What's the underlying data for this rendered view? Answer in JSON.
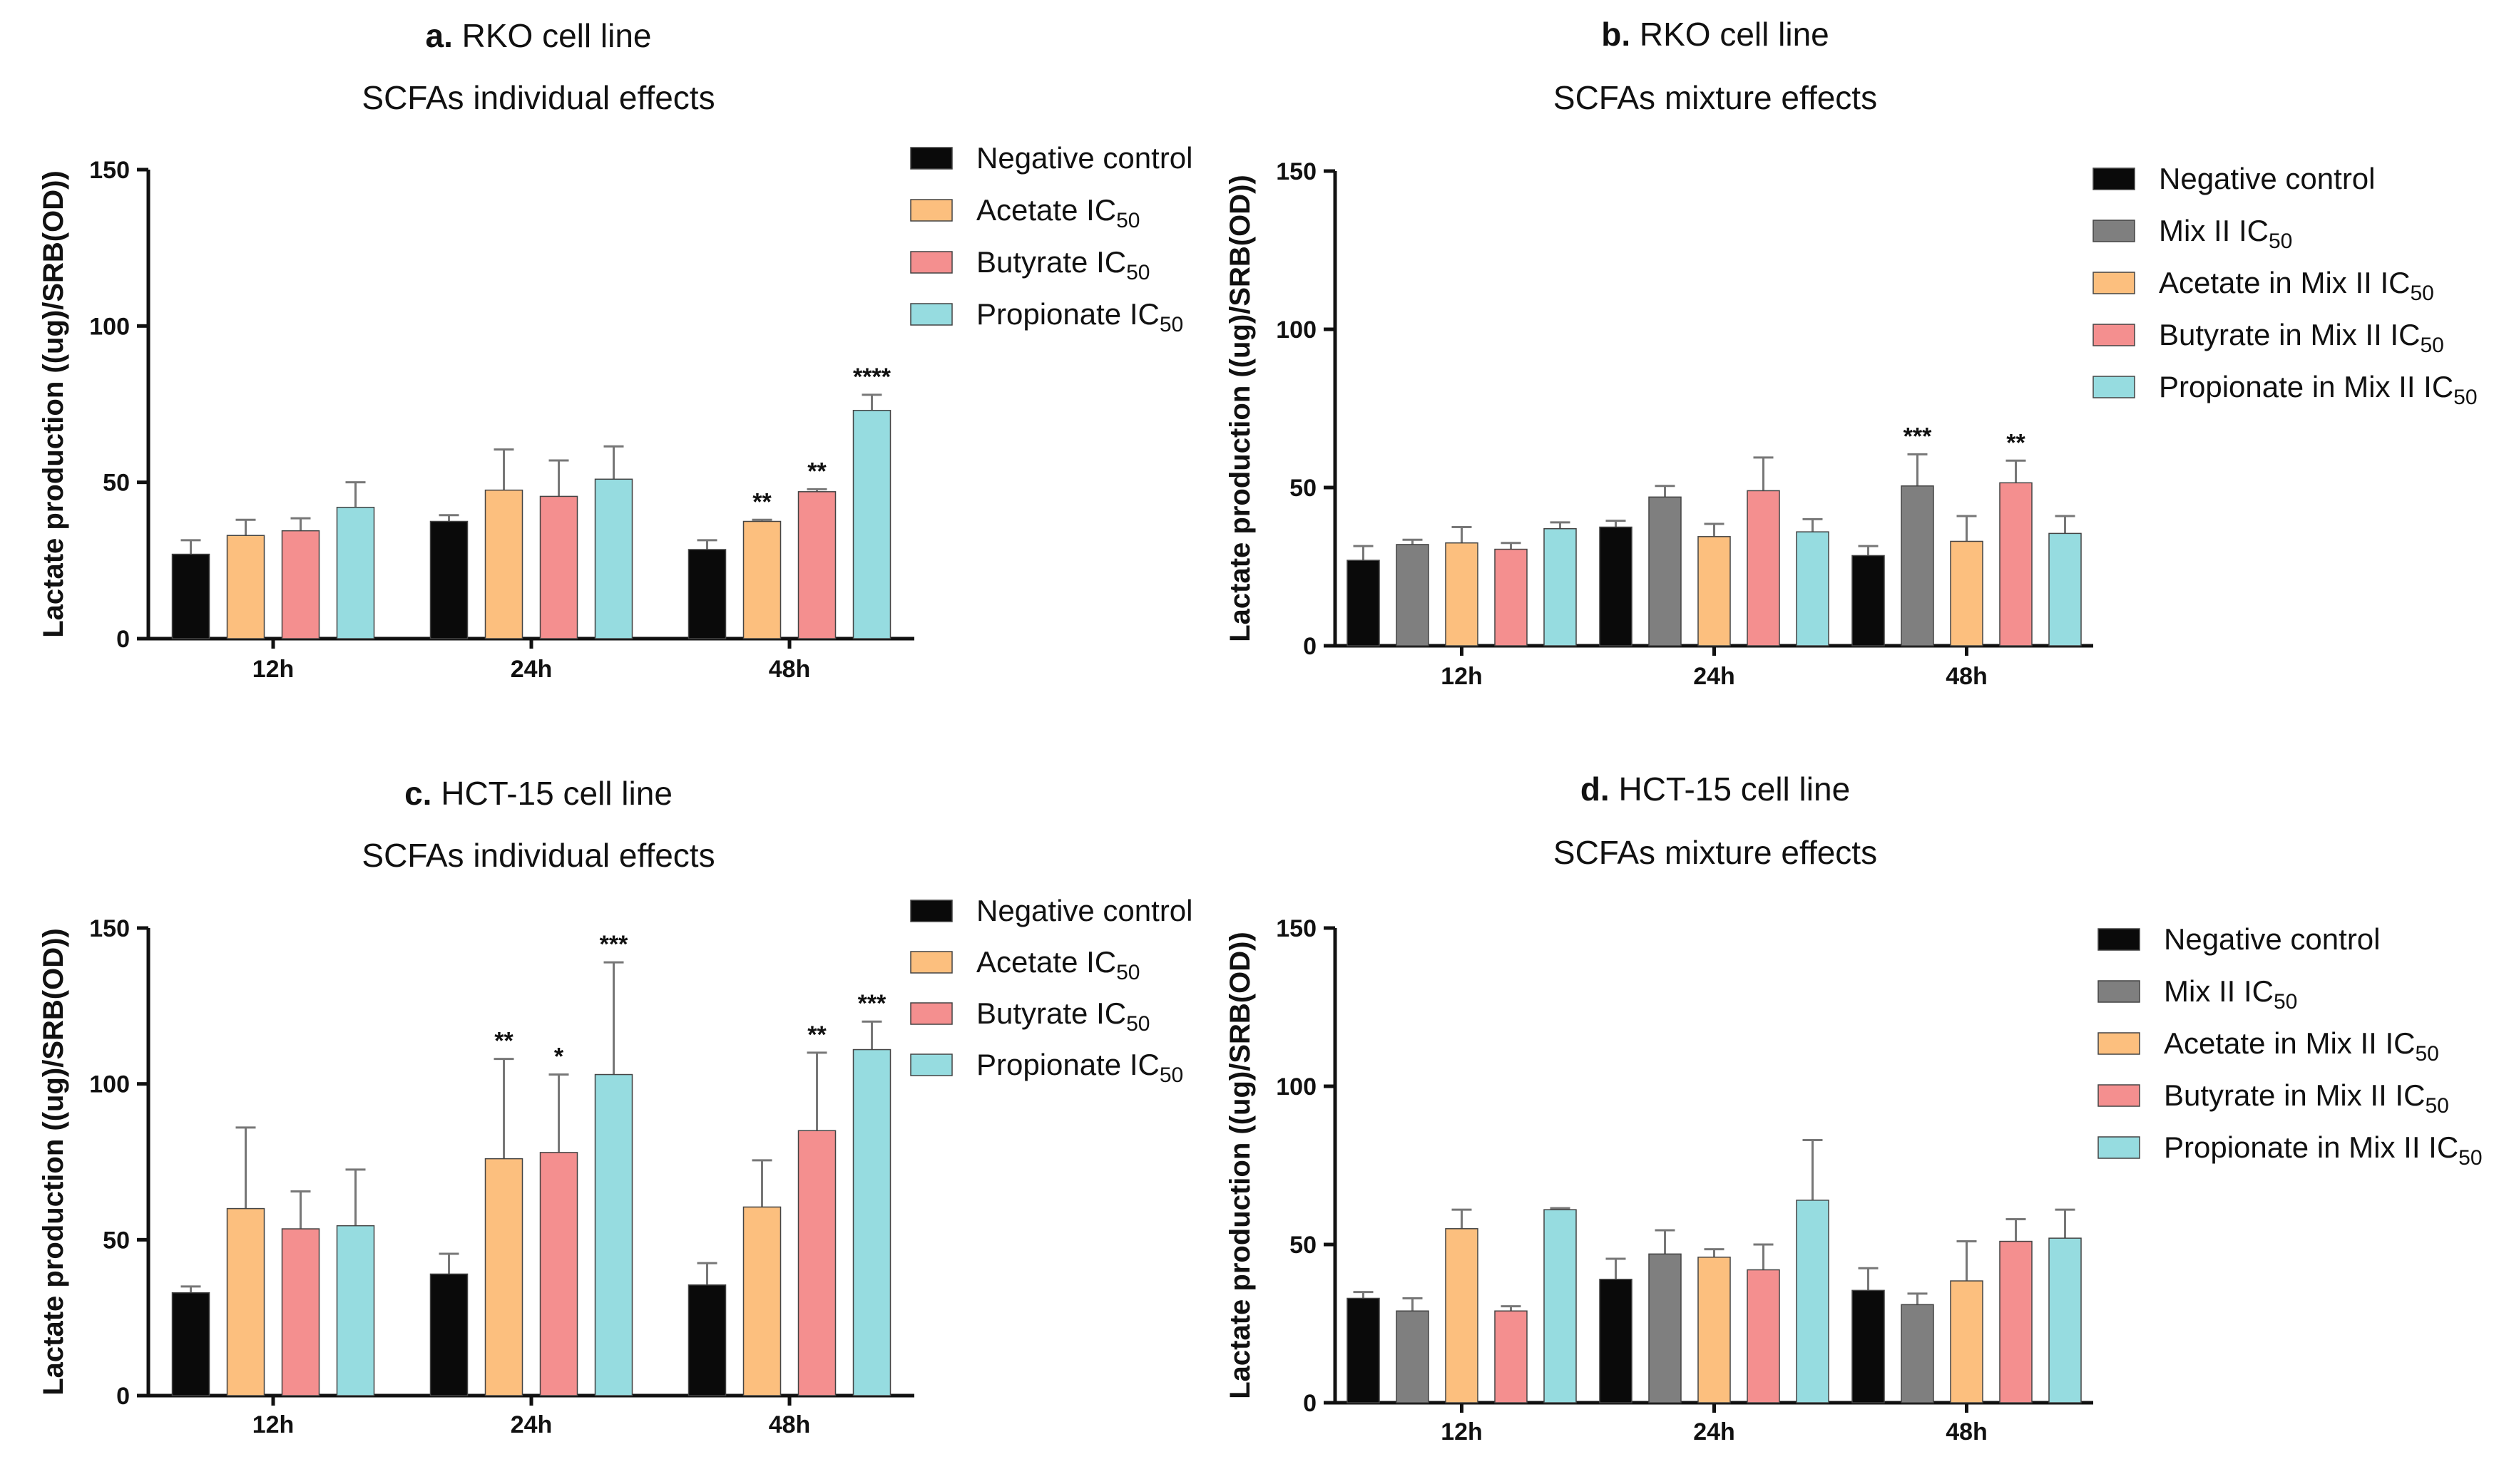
{
  "colors": {
    "negative": "#0a0a0a",
    "mix": "#7f7f7f",
    "acetate": "#fcbf7e",
    "butyrate": "#f48f8f",
    "propionate": "#96dce0",
    "axis": "#111111",
    "errorbar": "#777777"
  },
  "chart_data": [
    {
      "type": "bar",
      "panel_letter": "a.",
      "title": "RKO cell line",
      "subtitle": "SCFAs individual effects",
      "ylabel": "Lactate production ((ug)/SRB(OD))",
      "xlabel": "",
      "ylim": [
        0,
        150
      ],
      "yticks": [
        0,
        50,
        100,
        150
      ],
      "categories": [
        "12h",
        "24h",
        "48h"
      ],
      "legend_position": "top-right",
      "series": [
        {
          "name": "Negative control",
          "color_key": "negative",
          "values": [
            27,
            37.5,
            28.5
          ],
          "errors": [
            4.5,
            2,
            3
          ],
          "sig": [
            "",
            "",
            ""
          ]
        },
        {
          "name": "Acetate IC",
          "sub": "50",
          "color_key": "acetate",
          "values": [
            33,
            47.5,
            37.5
          ],
          "errors": [
            5,
            13,
            0.5
          ],
          "sig": [
            "",
            "",
            "**"
          ]
        },
        {
          "name": "Butyrate IC",
          "sub": "50",
          "color_key": "butyrate",
          "values": [
            34.5,
            45.5,
            47
          ],
          "errors": [
            4,
            11.5,
            0.8
          ],
          "sig": [
            "",
            "",
            "**"
          ]
        },
        {
          "name": "Propionate IC",
          "sub": "50",
          "color_key": "propionate",
          "values": [
            42,
            51,
            73
          ],
          "errors": [
            8,
            10.5,
            5
          ],
          "sig": [
            "",
            "",
            "****"
          ]
        }
      ]
    },
    {
      "type": "bar",
      "panel_letter": "b.",
      "title": "RKO cell line",
      "subtitle": "SCFAs mixture effects",
      "ylabel": "Lactate production ((ug)/SRB(OD))",
      "xlabel": "",
      "ylim": [
        0,
        150
      ],
      "yticks": [
        0,
        50,
        100,
        150
      ],
      "categories": [
        "12h",
        "24h",
        "48h"
      ],
      "legend_position": "top-right",
      "series": [
        {
          "name": "Negative control",
          "color_key": "negative",
          "values": [
            27,
            37.5,
            28.5
          ],
          "errors": [
            4.5,
            2,
            3
          ],
          "sig": [
            "",
            "",
            ""
          ]
        },
        {
          "name": "Mix II IC",
          "sub": "50",
          "color_key": "mix",
          "values": [
            32,
            47,
            50.5
          ],
          "errors": [
            1.5,
            3.5,
            10
          ],
          "sig": [
            "",
            "",
            "***"
          ]
        },
        {
          "name": "Acetate in Mix II IC",
          "sub": "50",
          "color_key": "acetate",
          "values": [
            32.5,
            34.5,
            33
          ],
          "errors": [
            5,
            4,
            8
          ],
          "sig": [
            "",
            "",
            ""
          ]
        },
        {
          "name": "Butyrate in Mix II IC",
          "sub": "50",
          "color_key": "butyrate",
          "values": [
            30.5,
            49,
            51.5
          ],
          "errors": [
            2,
            10.5,
            7
          ],
          "sig": [
            "",
            "",
            "**"
          ]
        },
        {
          "name": "Propionate in Mix II IC",
          "sub": "50",
          "color_key": "propionate",
          "values": [
            37,
            36,
            35.5
          ],
          "errors": [
            2,
            4,
            5.5
          ],
          "sig": [
            "",
            "",
            ""
          ]
        }
      ]
    },
    {
      "type": "bar",
      "panel_letter": "c.",
      "title": "HCT-15 cell line",
      "subtitle": "SCFAs individual effects",
      "ylabel": "Lactate production ((ug)/SRB(OD))",
      "xlabel": "",
      "ylim": [
        0,
        150
      ],
      "yticks": [
        0,
        50,
        100,
        150
      ],
      "categories": [
        "12h",
        "24h",
        "48h"
      ],
      "legend_position": "top-right",
      "series": [
        {
          "name": "Negative control",
          "color_key": "negative",
          "values": [
            33,
            39,
            35.5
          ],
          "errors": [
            2,
            6.5,
            7
          ],
          "sig": [
            "",
            "",
            ""
          ]
        },
        {
          "name": "Acetate IC",
          "sub": "50",
          "color_key": "acetate",
          "values": [
            60,
            76,
            60.5
          ],
          "errors": [
            26,
            32,
            15
          ],
          "sig": [
            "",
            "**",
            ""
          ]
        },
        {
          "name": "Butyrate IC",
          "sub": "50",
          "color_key": "butyrate",
          "values": [
            53.5,
            78,
            85
          ],
          "errors": [
            12,
            25,
            25
          ],
          "sig": [
            "",
            "*",
            "**"
          ]
        },
        {
          "name": "Propionate IC",
          "sub": "50",
          "color_key": "propionate",
          "values": [
            54.5,
            103,
            111
          ],
          "errors": [
            18,
            36,
            9
          ],
          "sig": [
            "",
            "***",
            "***"
          ]
        }
      ]
    },
    {
      "type": "bar",
      "panel_letter": "d.",
      "title": "HCT-15 cell line",
      "subtitle": "SCFAs mixture effects",
      "ylabel": "Lactate production ((ug)/SRB(OD))",
      "xlabel": "",
      "ylim": [
        0,
        150
      ],
      "yticks": [
        0,
        50,
        100,
        150
      ],
      "categories": [
        "12h",
        "24h",
        "48h"
      ],
      "legend_position": "top-right",
      "series": [
        {
          "name": "Negative control",
          "color_key": "negative",
          "values": [
            33,
            39,
            35.5
          ],
          "errors": [
            2,
            6.5,
            7
          ],
          "sig": [
            "",
            "",
            ""
          ]
        },
        {
          "name": "Mix II IC",
          "sub": "50",
          "color_key": "mix",
          "values": [
            29,
            47,
            31
          ],
          "errors": [
            4,
            7.5,
            3.5
          ],
          "sig": [
            "",
            "",
            ""
          ]
        },
        {
          "name": "Acetate in Mix II IC",
          "sub": "50",
          "color_key": "acetate",
          "values": [
            55,
            46,
            38.5
          ],
          "errors": [
            6,
            2.5,
            12.5
          ],
          "sig": [
            "",
            "",
            ""
          ]
        },
        {
          "name": "Butyrate in Mix II IC",
          "sub": "50",
          "color_key": "butyrate",
          "values": [
            29,
            42,
            51
          ],
          "errors": [
            1.5,
            8,
            7
          ],
          "sig": [
            "",
            "",
            ""
          ]
        },
        {
          "name": "Propionate in Mix II IC",
          "sub": "50",
          "color_key": "propionate",
          "values": [
            61,
            64,
            52
          ],
          "errors": [
            0.5,
            19,
            9
          ],
          "sig": [
            "",
            "",
            ""
          ]
        }
      ]
    }
  ]
}
